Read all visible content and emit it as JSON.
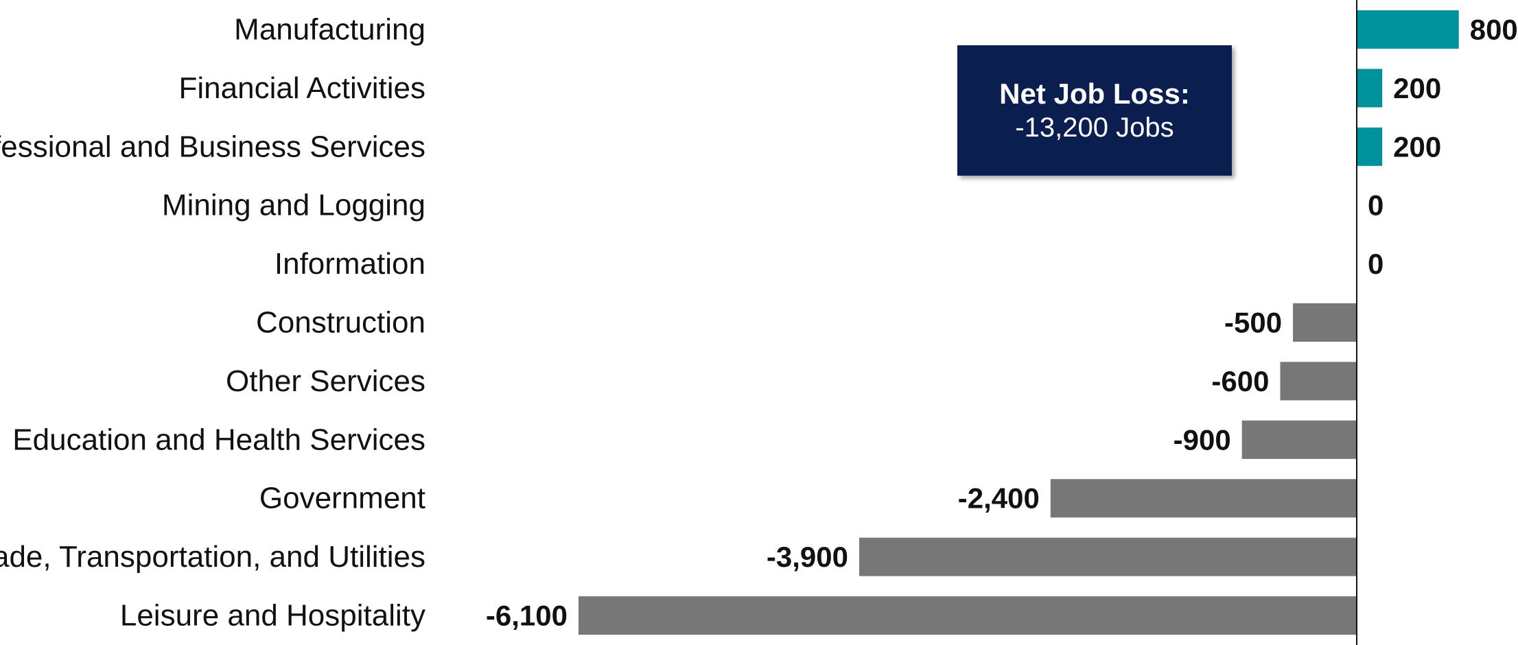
{
  "chart_data": {
    "type": "bar",
    "orientation": "horizontal",
    "categories": [
      "Manufacturing",
      "Financial Activities",
      "Professional and Business Services",
      "Mining and Logging",
      "Information",
      "Construction",
      "Other Services",
      "Education and Health Services",
      "Government",
      "Trade, Transportation, and Utilities",
      "Leisure and Hospitality"
    ],
    "values": [
      800,
      200,
      200,
      0,
      0,
      -500,
      -600,
      -900,
      -2400,
      -3900,
      -6100
    ],
    "value_labels": [
      "800",
      "200",
      "200",
      "0",
      "0",
      "-500",
      "-600",
      "-900",
      "-2,400",
      "-3,900",
      "-6,100"
    ],
    "xlim": [
      -6100,
      800
    ],
    "grid": false,
    "colors": {
      "positive": "#00929c",
      "negative": "#777777",
      "axis": "#111111"
    },
    "annotation": {
      "title": "Net Job Loss:",
      "value": "-13,200 Jobs",
      "background": "#0a1f4f"
    }
  }
}
